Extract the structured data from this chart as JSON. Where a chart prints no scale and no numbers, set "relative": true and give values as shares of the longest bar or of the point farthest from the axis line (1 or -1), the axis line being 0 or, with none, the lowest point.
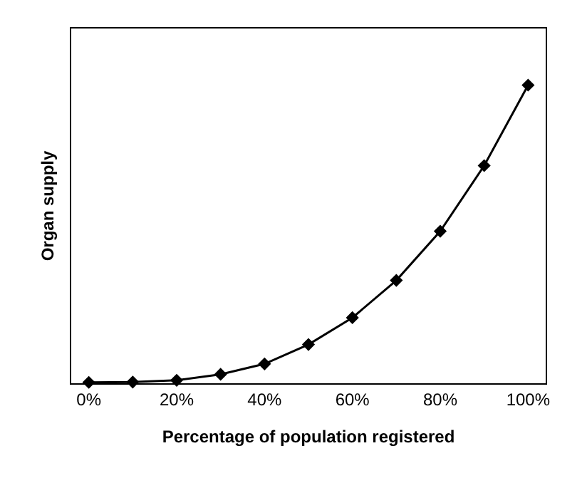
{
  "chart_data": {
    "type": "line",
    "xlabel": "Percentage of population registered",
    "ylabel": "Organ supply",
    "relative": true,
    "x": [
      0,
      10,
      20,
      30,
      40,
      50,
      60,
      70,
      80,
      90,
      100
    ],
    "series": [
      {
        "color": "#000000",
        "values": [
          0.003,
          0.004,
          0.01,
          0.03,
          0.065,
          0.13,
          0.22,
          0.345,
          0.51,
          0.73,
          1
        ]
      }
    ],
    "xlim": [
      -4,
      104
    ],
    "xticks": [
      {
        "value": 0,
        "label": "0%"
      },
      {
        "value": 20,
        "label": "20%"
      },
      {
        "value": 40,
        "label": "40%"
      },
      {
        "value": 60,
        "label": "60%"
      },
      {
        "value": 80,
        "label": "80%"
      },
      {
        "value": 100,
        "label": "100%"
      }
    ],
    "marker": "diamond",
    "line_style": "solid",
    "legend": false
  }
}
